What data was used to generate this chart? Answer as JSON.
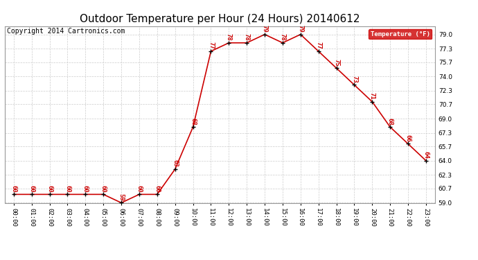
{
  "title": "Outdoor Temperature per Hour (24 Hours) 20140612",
  "copyright": "Copyright 2014 Cartronics.com",
  "legend_label": "Temperature (°F)",
  "hours": [
    0,
    1,
    2,
    3,
    4,
    5,
    6,
    7,
    8,
    9,
    10,
    11,
    12,
    13,
    14,
    15,
    16,
    17,
    18,
    19,
    20,
    21,
    22,
    23
  ],
  "temps": [
    60,
    60,
    60,
    60,
    60,
    60,
    59,
    60,
    60,
    63,
    68,
    77,
    78,
    78,
    79,
    78,
    79,
    77,
    75,
    73,
    71,
    68,
    66,
    64
  ],
  "ylim": [
    59.0,
    80.0
  ],
  "yticks": [
    59.0,
    60.7,
    62.3,
    64.0,
    65.7,
    67.3,
    69.0,
    70.7,
    72.3,
    74.0,
    75.7,
    77.3,
    79.0
  ],
  "line_color": "#cc0000",
  "marker_color": "#000000",
  "legend_bg": "#cc0000",
  "legend_text_color": "#ffffff",
  "title_fontsize": 11,
  "copyright_fontsize": 7,
  "label_fontsize": 6.5,
  "tick_fontsize": 6.5,
  "grid_color": "#cccccc",
  "bg_color": "#ffffff"
}
